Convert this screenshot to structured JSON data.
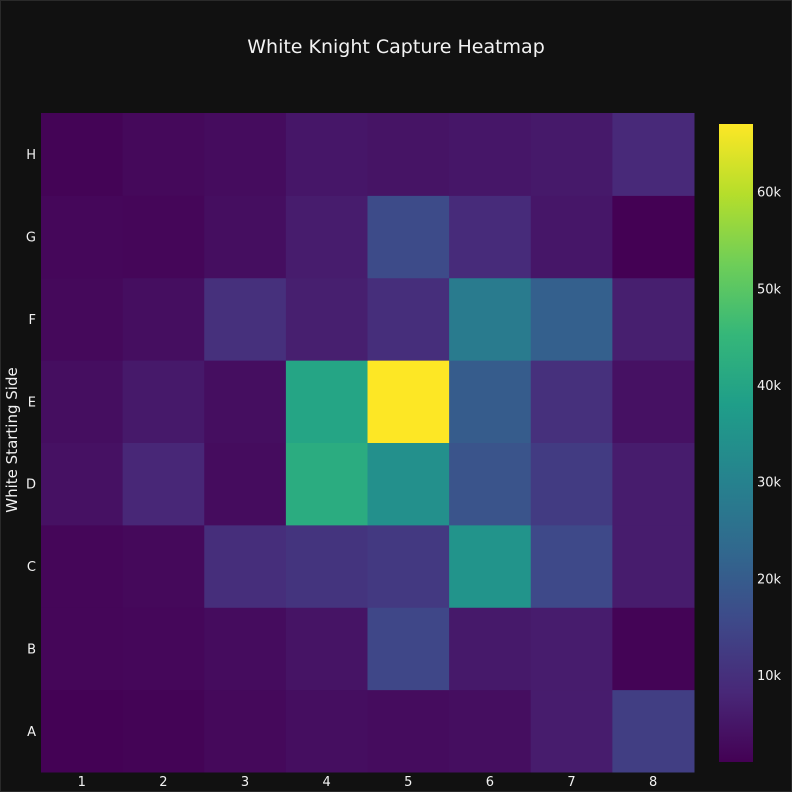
{
  "chart_data": {
    "type": "heatmap",
    "title": "White Knight Capture Heatmap",
    "xlabel": "",
    "ylabel": "White Starting Side",
    "x": [
      "1",
      "2",
      "3",
      "4",
      "5",
      "6",
      "7",
      "8"
    ],
    "y": [
      "A",
      "B",
      "C",
      "D",
      "E",
      "F",
      "G",
      "H"
    ],
    "z": [
      [
        1200,
        1500,
        2500,
        3500,
        3000,
        3500,
        6000,
        13000
      ],
      [
        2000,
        2200,
        3000,
        4500,
        15000,
        5500,
        6000,
        1500
      ],
      [
        2000,
        2500,
        9500,
        11000,
        12000,
        35000,
        15500,
        6000
      ],
      [
        4000,
        8000,
        3000,
        42000,
        34000,
        18000,
        12500,
        6000
      ],
      [
        3500,
        5500,
        3500,
        40000,
        67000,
        20000,
        10000,
        4000
      ],
      [
        2500,
        3500,
        10000,
        6500,
        9500,
        28000,
        21000,
        6500
      ],
      [
        2200,
        2000,
        3500,
        6000,
        16000,
        9000,
        5000,
        1000
      ],
      [
        1500,
        2500,
        3000,
        5000,
        4500,
        5000,
        5500,
        8500
      ]
    ],
    "zmin": 1000,
    "zmax": 67000,
    "colorscale": "viridis",
    "colorbar_ticks": [
      10000,
      20000,
      30000,
      40000,
      50000,
      60000
    ],
    "colorbar_tick_labels": [
      "10k",
      "20k",
      "30k",
      "40k",
      "50k",
      "60k"
    ],
    "grid": false
  }
}
